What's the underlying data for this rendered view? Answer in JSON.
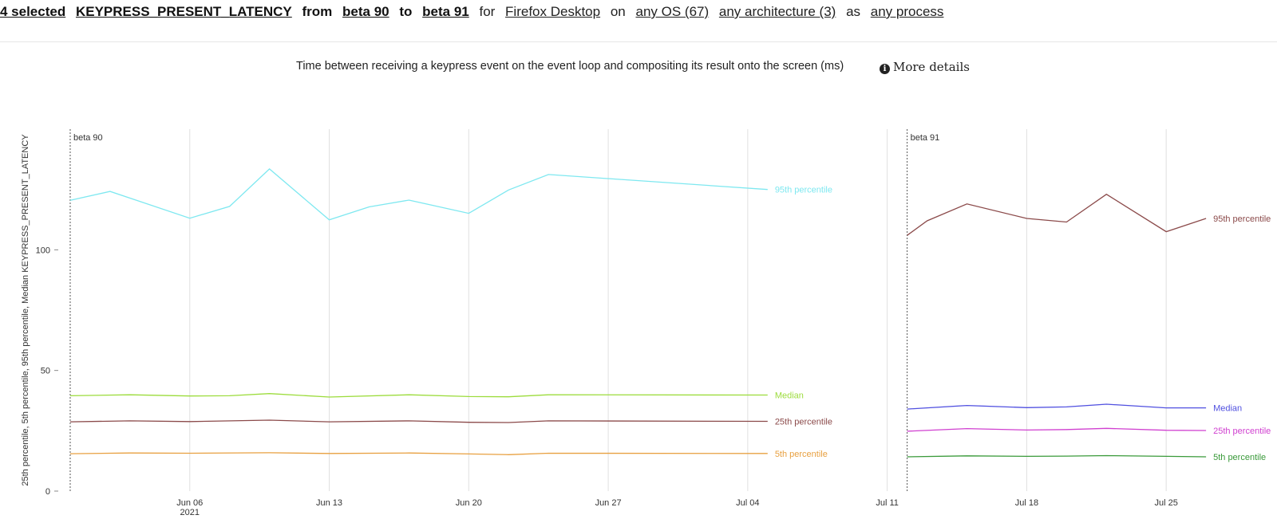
{
  "header": {
    "selected": "4 selected",
    "metric": "KEYPRESS_PRESENT_LATENCY",
    "from_word": "from",
    "from_version": "beta 90",
    "to_word": "to",
    "to_version": "beta 91",
    "for_word": "for",
    "product": "Firefox Desktop",
    "on_word": "on",
    "os": "any OS (67)",
    "architecture": "any architecture (3)",
    "as_word": "as",
    "process": "any process"
  },
  "title": {
    "text": "Time between receiving a keypress event on the event loop and compositing its result onto the screen (ms)",
    "more_details": "More details",
    "icon": "info-circle-icon"
  },
  "chart_data": {
    "type": "line",
    "ylabel": "25th percentile, 5th percentile, 95th percentile, Median KEYPRESS_PRESENT_LATENCY",
    "ylim": [
      0,
      150
    ],
    "yticks": [
      0,
      50,
      100
    ],
    "xlim": [
      "2021-05-30",
      "2021-07-30"
    ],
    "xticks": [
      {
        "date": "2021-06-06",
        "label": "Jun 06",
        "sublabel": "2021"
      },
      {
        "date": "2021-06-13",
        "label": "Jun 13"
      },
      {
        "date": "2021-06-20",
        "label": "Jun 20"
      },
      {
        "date": "2021-06-27",
        "label": "Jun 27"
      },
      {
        "date": "2021-07-04",
        "label": "Jul 04"
      },
      {
        "date": "2021-07-11",
        "label": "Jul 11"
      },
      {
        "date": "2021-07-18",
        "label": "Jul 18"
      },
      {
        "date": "2021-07-25",
        "label": "Jul 25"
      }
    ],
    "grid": true,
    "releases": [
      {
        "name": "beta 90",
        "start": "2021-05-31",
        "series": [
          {
            "name": "95th percentile",
            "color": "#7ee8f0",
            "points": [
              [
                "2021-05-31",
                120.5
              ],
              [
                "2021-06-02",
                124.2
              ],
              [
                "2021-06-06",
                113.1
              ],
              [
                "2021-06-08",
                118
              ],
              [
                "2021-06-10",
                133.5
              ],
              [
                "2021-06-13",
                112.4
              ],
              [
                "2021-06-15",
                117.8
              ],
              [
                "2021-06-17",
                120.6
              ],
              [
                "2021-06-20",
                115.1
              ],
              [
                "2021-06-22",
                124.8
              ],
              [
                "2021-06-24",
                131.2
              ],
              [
                "2021-07-05",
                125
              ]
            ]
          },
          {
            "name": "Median",
            "color": "#9cdc3c",
            "points": [
              [
                "2021-05-31",
                39.5
              ],
              [
                "2021-06-03",
                39.9
              ],
              [
                "2021-06-06",
                39.4
              ],
              [
                "2021-06-08",
                39.5
              ],
              [
                "2021-06-10",
                40.4
              ],
              [
                "2021-06-13",
                39
              ],
              [
                "2021-06-17",
                39.9
              ],
              [
                "2021-06-20",
                39.2
              ],
              [
                "2021-06-22",
                39.1
              ],
              [
                "2021-06-24",
                39.9
              ],
              [
                "2021-07-05",
                39.8
              ]
            ]
          },
          {
            "name": "25th percentile",
            "color": "#8b4a4a",
            "points": [
              [
                "2021-05-31",
                28.7
              ],
              [
                "2021-06-03",
                29.1
              ],
              [
                "2021-06-06",
                28.8
              ],
              [
                "2021-06-10",
                29.4
              ],
              [
                "2021-06-13",
                28.7
              ],
              [
                "2021-06-17",
                29.1
              ],
              [
                "2021-06-20",
                28.5
              ],
              [
                "2021-06-22",
                28.4
              ],
              [
                "2021-06-24",
                29.1
              ],
              [
                "2021-07-05",
                28.9
              ]
            ]
          },
          {
            "name": "5th percentile",
            "color": "#e8a040",
            "points": [
              [
                "2021-05-31",
                15.5
              ],
              [
                "2021-06-03",
                15.8
              ],
              [
                "2021-06-06",
                15.7
              ],
              [
                "2021-06-10",
                15.9
              ],
              [
                "2021-06-13",
                15.6
              ],
              [
                "2021-06-17",
                15.8
              ],
              [
                "2021-06-20",
                15.4
              ],
              [
                "2021-06-22",
                15.1
              ],
              [
                "2021-06-24",
                15.7
              ],
              [
                "2021-07-05",
                15.6
              ]
            ]
          }
        ]
      },
      {
        "name": "beta 91",
        "start": "2021-07-12",
        "series": [
          {
            "name": "95th percentile",
            "color": "#8b4a4a",
            "points": [
              [
                "2021-07-12",
                106
              ],
              [
                "2021-07-13",
                112
              ],
              [
                "2021-07-15",
                119
              ],
              [
                "2021-07-18",
                113
              ],
              [
                "2021-07-20",
                111.5
              ],
              [
                "2021-07-22",
                123
              ],
              [
                "2021-07-25",
                107.5
              ],
              [
                "2021-07-27",
                113
              ]
            ]
          },
          {
            "name": "Median",
            "color": "#5050e0",
            "points": [
              [
                "2021-07-12",
                34
              ],
              [
                "2021-07-15",
                35.5
              ],
              [
                "2021-07-18",
                34.6
              ],
              [
                "2021-07-20",
                34.9
              ],
              [
                "2021-07-22",
                36
              ],
              [
                "2021-07-25",
                34.5
              ],
              [
                "2021-07-27",
                34.5
              ]
            ]
          },
          {
            "name": "25th percentile",
            "color": "#d040d0",
            "points": [
              [
                "2021-07-12",
                24.8
              ],
              [
                "2021-07-15",
                25.9
              ],
              [
                "2021-07-18",
                25.3
              ],
              [
                "2021-07-20",
                25.5
              ],
              [
                "2021-07-22",
                26
              ],
              [
                "2021-07-25",
                25.2
              ],
              [
                "2021-07-27",
                25.1
              ]
            ]
          },
          {
            "name": "5th percentile",
            "color": "#3a9a3a",
            "points": [
              [
                "2021-07-12",
                14.2
              ],
              [
                "2021-07-15",
                14.6
              ],
              [
                "2021-07-18",
                14.4
              ],
              [
                "2021-07-20",
                14.5
              ],
              [
                "2021-07-22",
                14.7
              ],
              [
                "2021-07-25",
                14.4
              ],
              [
                "2021-07-27",
                14.2
              ]
            ]
          }
        ]
      }
    ]
  }
}
